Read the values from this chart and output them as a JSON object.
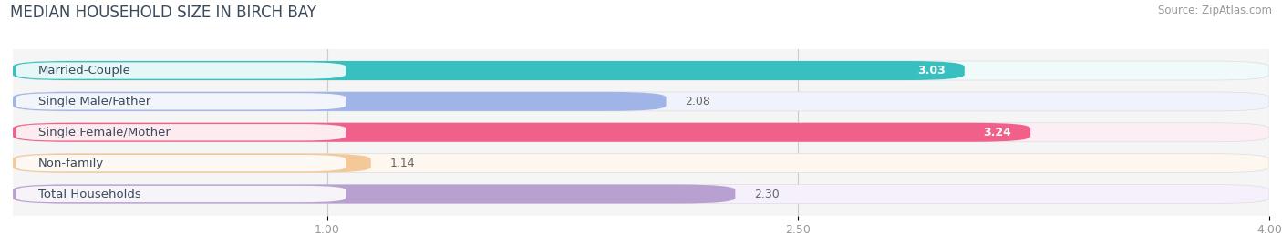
{
  "title": "MEDIAN HOUSEHOLD SIZE IN BIRCH BAY",
  "source": "Source: ZipAtlas.com",
  "categories": [
    "Married-Couple",
    "Single Male/Father",
    "Single Female/Mother",
    "Non-family",
    "Total Households"
  ],
  "values": [
    3.03,
    2.08,
    3.24,
    1.14,
    2.3
  ],
  "bar_colors": [
    "#38bfbf",
    "#a0b4e8",
    "#f0608a",
    "#f5c89a",
    "#b8a0d0"
  ],
  "bar_bg_colors": [
    "#f0fafa",
    "#f0f2fc",
    "#fceef4",
    "#fdf7f0",
    "#f5f0fc"
  ],
  "label_bg_color": "#ffffff",
  "xlim": [
    0,
    4.0
  ],
  "xstart": 0,
  "xticks": [
    1.0,
    2.5,
    4.0
  ],
  "value_label_white": [
    true,
    false,
    true,
    false,
    false
  ],
  "bar_height": 0.62,
  "bar_gap": 0.38,
  "figsize": [
    14.06,
    2.69
  ],
  "dpi": 100,
  "bg_color": "#ffffff",
  "plot_bg_color": "#f5f5f5",
  "title_fontsize": 12,
  "label_fontsize": 9.5,
  "value_fontsize": 9,
  "title_color": "#3a4a5a"
}
